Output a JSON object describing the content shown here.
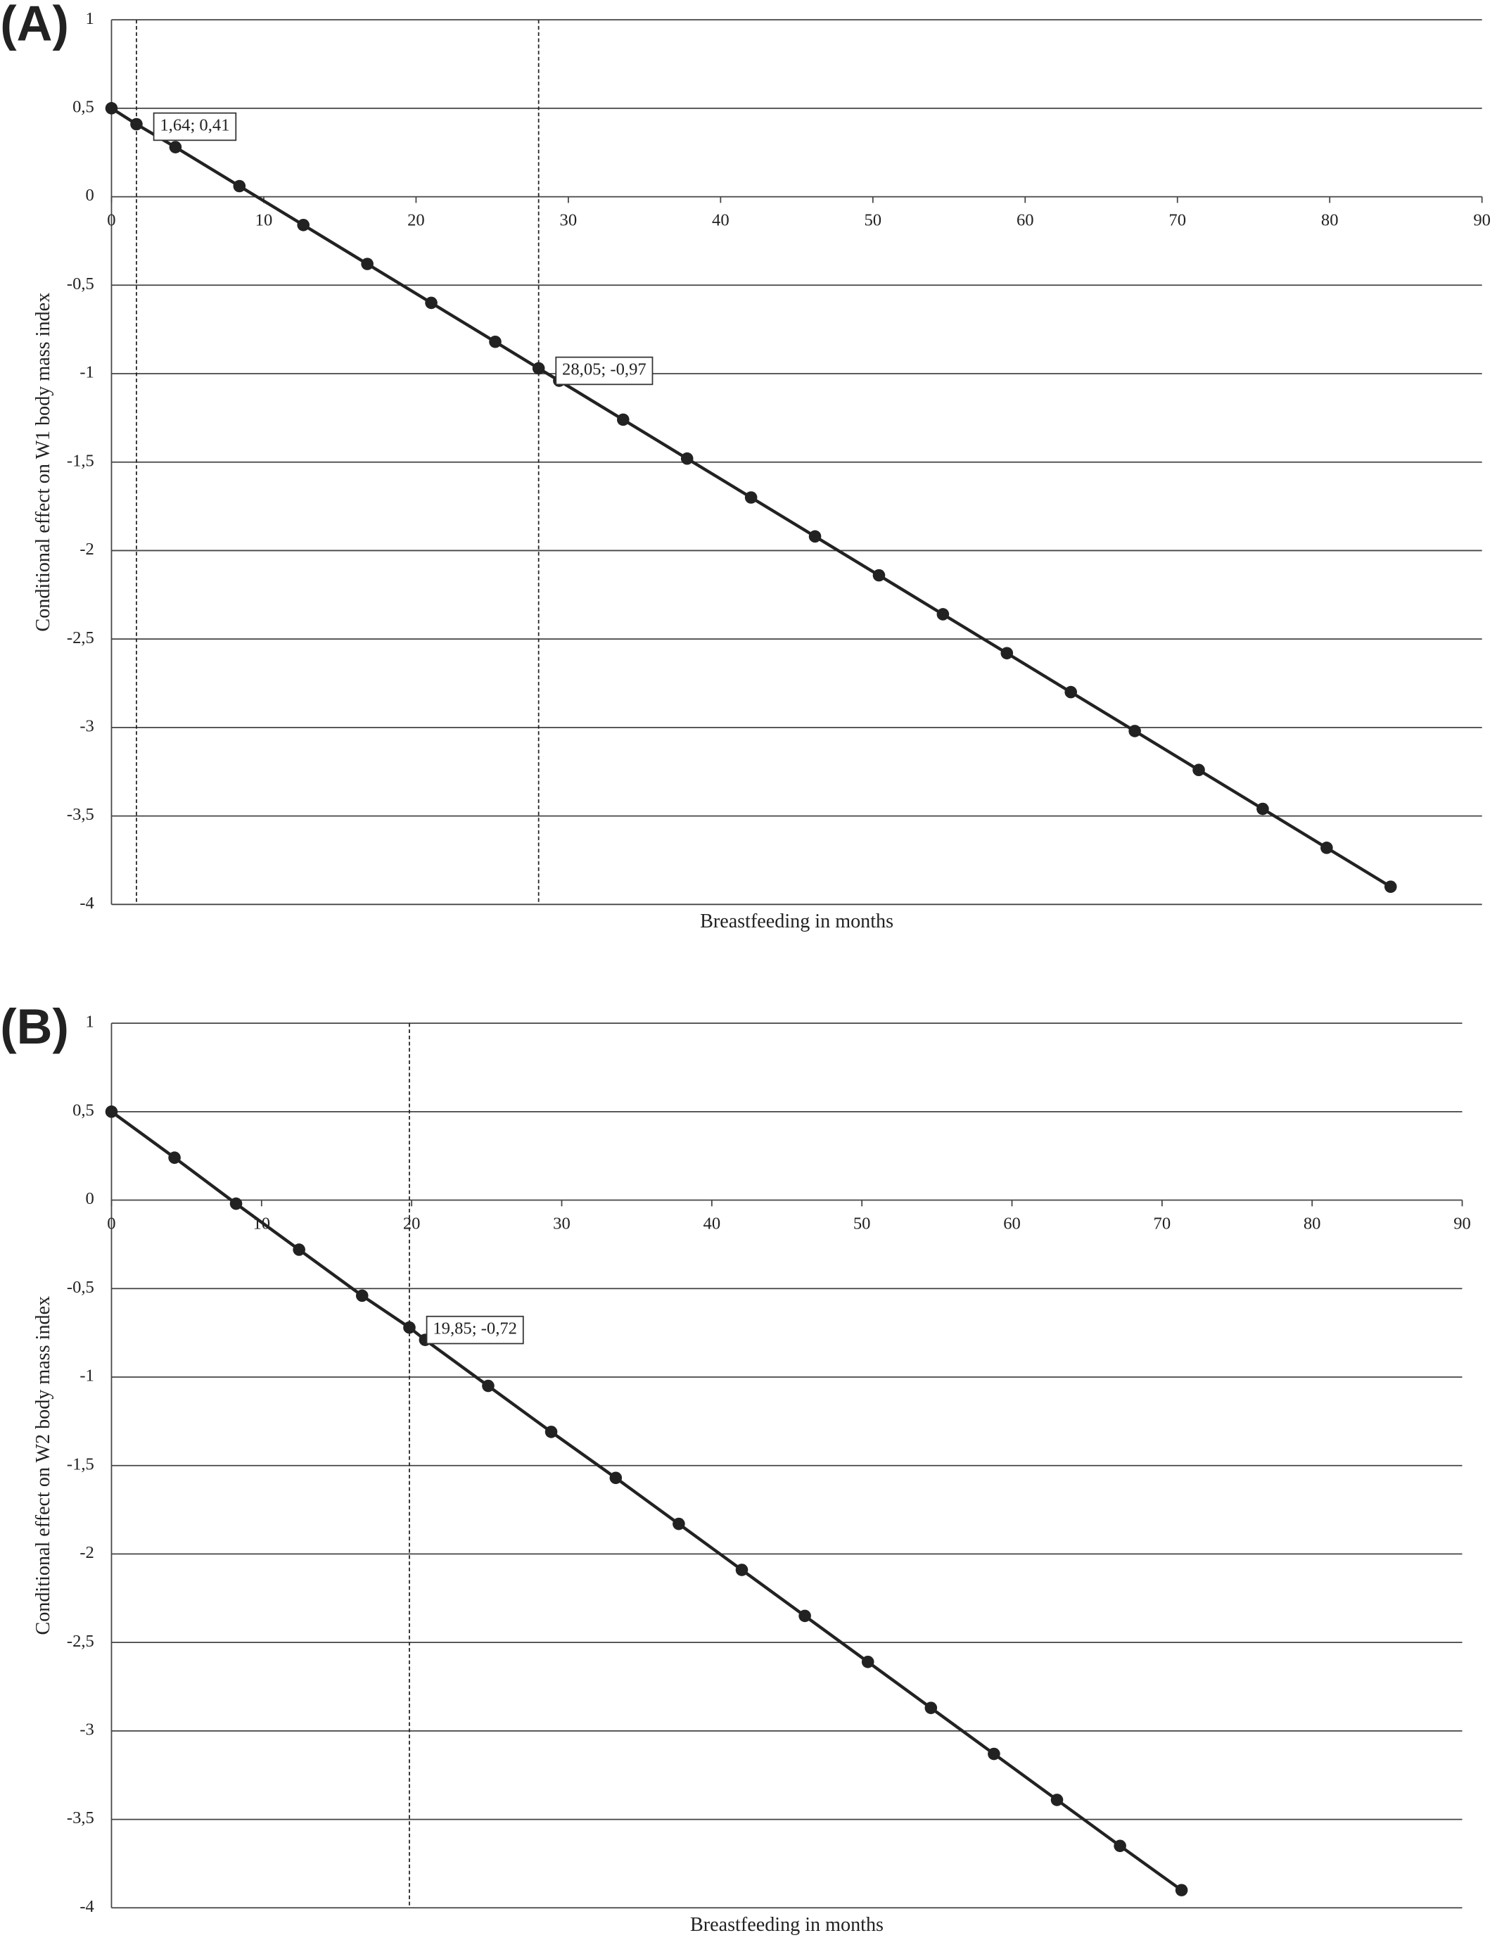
{
  "chart_data": [
    {
      "type": "line",
      "panel_label": "(A)",
      "y_label": "Conditional effect on W1 body mass index",
      "x_label": "Breastfeeding in months",
      "color": "#222222",
      "grid": true,
      "x": [
        0,
        1.64,
        4.2,
        8.4,
        12.6,
        16.8,
        21,
        25.2,
        28.05,
        29.4,
        33.6,
        37.8,
        42,
        46.2,
        50.4,
        54.6,
        58.8,
        63,
        67.2,
        71.4,
        75.6,
        79.8,
        84
      ],
      "values": [
        0.5,
        0.41,
        0.28,
        0.06,
        -0.16,
        -0.38,
        -0.6,
        -0.82,
        -0.97,
        -1.04,
        -1.26,
        -1.48,
        -1.7,
        -1.92,
        -2.14,
        -2.36,
        -2.58,
        -2.8,
        -3.02,
        -3.24,
        -3.46,
        -3.68,
        -3.9
      ],
      "xlim": [
        0,
        90
      ],
      "xticks": [
        0,
        10,
        20,
        30,
        40,
        50,
        60,
        70,
        80,
        90
      ],
      "ylim": [
        -4,
        1
      ],
      "yticks": [
        1,
        {
          "value": 0.5,
          "label": "0,5"
        },
        0,
        {
          "value": -0.5,
          "label": "-0,5"
        },
        -1,
        {
          "value": -1.5,
          "label": "-1,5"
        },
        -2,
        {
          "value": -2.5,
          "label": "-2,5"
        },
        -3,
        {
          "value": -3.5,
          "label": "-3,5"
        },
        -4
      ],
      "vlines": [
        1.64,
        28.05
      ],
      "annotations": [
        {
          "text": "1,64; 0,41",
          "x": 1.64,
          "y": 0.41
        },
        {
          "text": "28,05; -0,97",
          "x": 28.05,
          "y": -0.97
        }
      ]
    },
    {
      "type": "line",
      "panel_label": "(B)",
      "y_label": "Conditional effect on W2 body mass index",
      "x_label": "Breastfeeding in months",
      "color": "#222222",
      "grid": true,
      "x": [
        0,
        4.2,
        8.3,
        12.5,
        16.7,
        19.85,
        20.9,
        25.1,
        29.3,
        33.6,
        37.8,
        42,
        46.2,
        50.4,
        54.6,
        58.8,
        63,
        67.2,
        71.3
      ],
      "values": [
        0.5,
        0.24,
        -0.02,
        -0.28,
        -0.54,
        -0.72,
        -0.79,
        -1.05,
        -1.31,
        -1.57,
        -1.83,
        -2.09,
        -2.35,
        -2.61,
        -2.87,
        -3.13,
        -3.39,
        -3.65,
        -3.9
      ],
      "xlim": [
        0,
        90
      ],
      "xticks": [
        0,
        10,
        20,
        30,
        40,
        50,
        60,
        70,
        80,
        90
      ],
      "ylim": [
        -4,
        1
      ],
      "yticks": [
        1,
        {
          "value": 0.5,
          "label": "0,5"
        },
        0,
        {
          "value": -0.5,
          "label": "-0,5"
        },
        -1,
        {
          "value": -1.5,
          "label": "-1,5"
        },
        -2,
        {
          "value": -2.5,
          "label": "-2,5"
        },
        -3,
        {
          "value": -3.5,
          "label": "-3,5"
        },
        -4
      ],
      "vlines": [
        19.85
      ],
      "annotations": [
        {
          "text": "19,85; -0,72",
          "x": 19.85,
          "y": -0.72
        }
      ]
    }
  ]
}
